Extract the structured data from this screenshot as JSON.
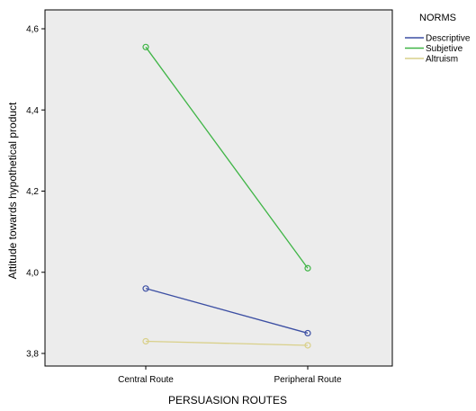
{
  "chart_data": {
    "type": "line",
    "xlabel": "PERSUASION ROUTES",
    "ylabel": "Attitude towards hypothetical product",
    "categories": [
      "Central Route",
      "Peripheral Route"
    ],
    "ylim": [
      3.78,
      4.62
    ],
    "yticks": [
      "3,8",
      "4,0",
      "4,2",
      "4,4",
      "4,6"
    ],
    "ytick_values": [
      3.8,
      4.0,
      4.2,
      4.4,
      4.6
    ],
    "grid": false,
    "legend_title": "NORMS",
    "legend_position": "right",
    "plot_background": "#ececec",
    "series": [
      {
        "name": "Descriptive",
        "color": "#3c4fa3",
        "values": [
          3.96,
          3.85
        ]
      },
      {
        "name": "Subjetive",
        "color": "#3fb546",
        "values": [
          4.555,
          4.01
        ]
      },
      {
        "name": "Altruism",
        "color": "#d9d08a",
        "values": [
          3.83,
          3.82
        ]
      }
    ]
  }
}
